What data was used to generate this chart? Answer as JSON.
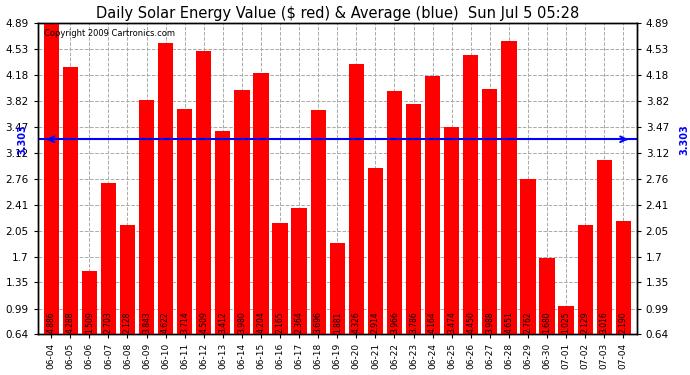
{
  "title": "Daily Solar Energy Value ($ red) & Average (blue)  Sun Jul 5 05:28",
  "copyright": "Copyright 2009 Cartronics.com",
  "average": 3.303,
  "bar_color": "#ff0000",
  "avg_line_color": "#0000ff",
  "background_color": "#ffffff",
  "grid_color": "#aaaaaa",
  "categories": [
    "06-04",
    "06-05",
    "06-06",
    "06-07",
    "06-08",
    "06-09",
    "06-10",
    "06-11",
    "06-12",
    "06-13",
    "06-14",
    "06-15",
    "06-16",
    "06-17",
    "06-18",
    "06-19",
    "06-20",
    "06-21",
    "06-22",
    "06-23",
    "06-24",
    "06-25",
    "06-26",
    "06-27",
    "06-28",
    "06-29",
    "06-30",
    "07-01",
    "07-02",
    "07-03",
    "07-04"
  ],
  "values": [
    4.886,
    4.288,
    1.509,
    2.703,
    2.128,
    3.843,
    4.622,
    3.714,
    4.509,
    3.412,
    3.98,
    4.204,
    2.165,
    2.364,
    3.696,
    1.881,
    4.326,
    2.914,
    3.966,
    3.786,
    4.164,
    3.474,
    4.45,
    3.988,
    4.651,
    2.762,
    1.68,
    1.025,
    2.129,
    3.016,
    2.19
  ],
  "yticks": [
    0.64,
    0.99,
    1.35,
    1.7,
    2.05,
    2.41,
    2.76,
    3.12,
    3.47,
    3.82,
    4.18,
    4.53,
    4.89
  ],
  "ylim_min": 0.64,
  "ylim_max": 4.89,
  "bar_label_fontsize": 5.5,
  "avg_label": "3.303",
  "title_fontsize": 10.5,
  "ytick_fontsize": 7.5,
  "xtick_fontsize": 6.5
}
